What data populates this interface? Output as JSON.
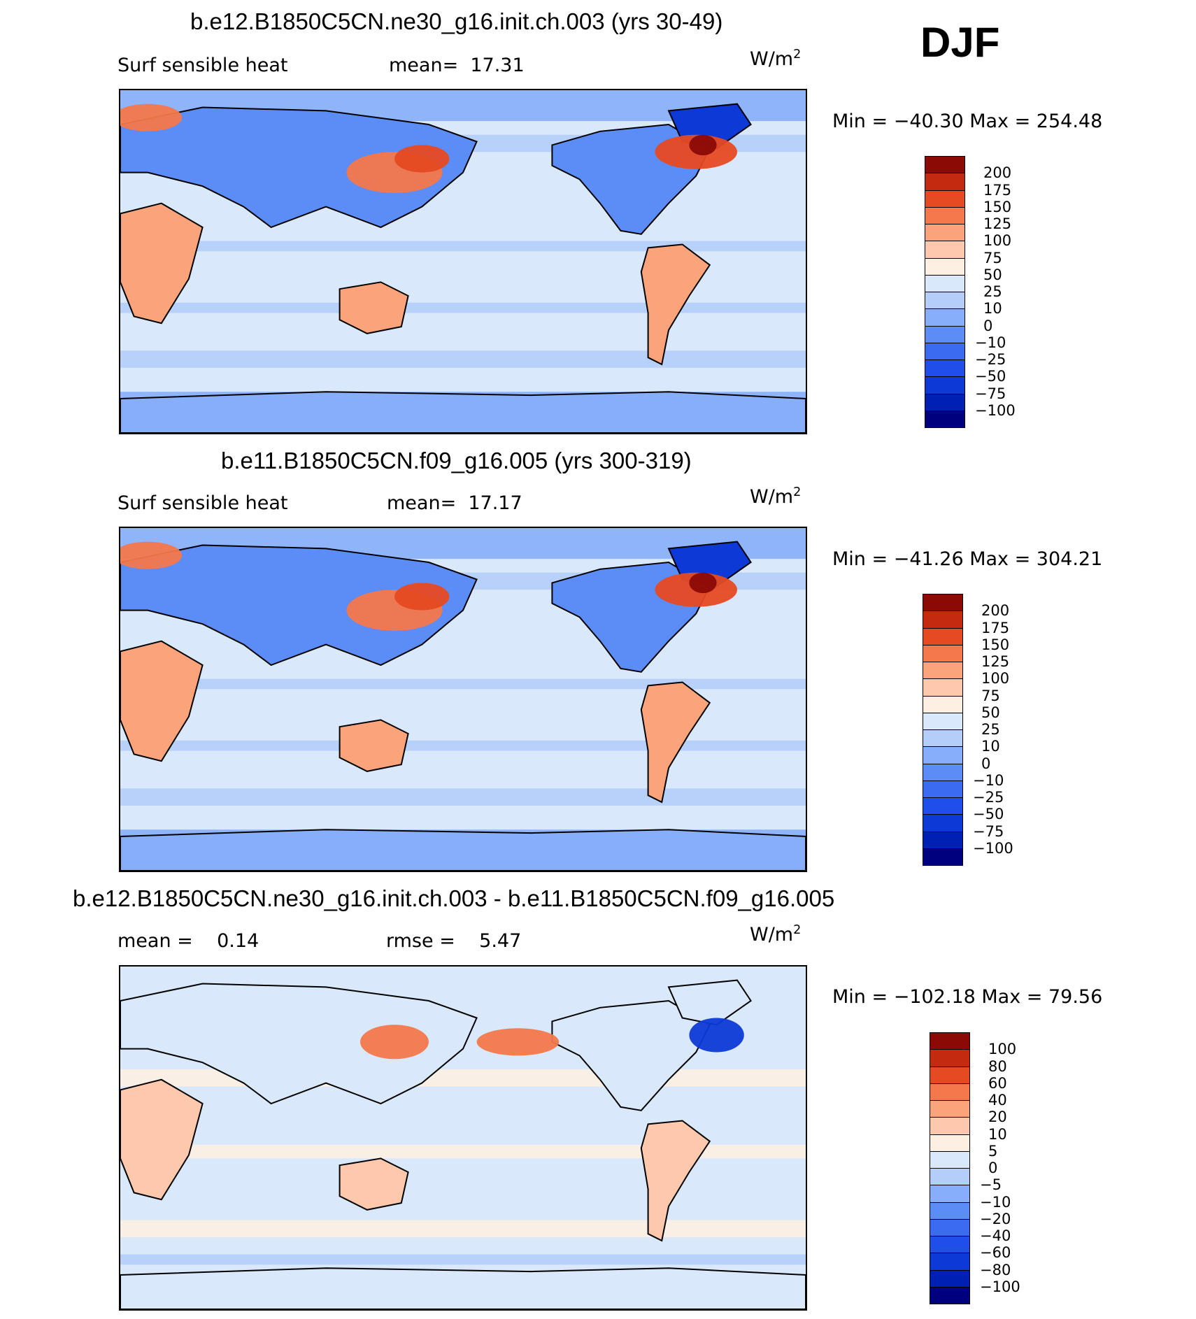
{
  "season": "DJF",
  "palette": {
    "abs": [
      "#00007f",
      "#0020b3",
      "#0d3ad6",
      "#1f4ee8",
      "#3a6bf0",
      "#5c8cf5",
      "#86aefa",
      "#b4cef9",
      "#d9e8fb",
      "#fdf0e2",
      "#fdc8ab",
      "#fba47b",
      "#f4784b",
      "#e64a22",
      "#c42a0f",
      "#8b0a06"
    ],
    "diff": [
      "#00007f",
      "#0020b3",
      "#0d3ad6",
      "#1f4ee8",
      "#3a6bf0",
      "#5c8cf5",
      "#86aefa",
      "#b4cef9",
      "#d9e8fb",
      "#fdf0e2",
      "#fdc8ab",
      "#fba47b",
      "#f4784b",
      "#e64a22",
      "#c42a0f",
      "#8b0a06"
    ],
    "land_outline": "#000000"
  },
  "panels": [
    {
      "case_title": "b.e12.B1850C5CN.ne30_g16.init.ch.003 (yrs 30-49)",
      "left_text": "Surf sensible heat",
      "center_text": "mean=  17.31",
      "units_main": "W/m",
      "units_exp": "2",
      "minmax": "Min = −40.30 Max = 254.48",
      "scale": "abs"
    },
    {
      "case_title": "b.e11.B1850C5CN.f09_g16.005 (yrs 300-319)",
      "left_text": "Surf sensible heat",
      "center_text": "mean=  17.17",
      "units_main": "W/m",
      "units_exp": "2",
      "minmax": "Min = −41.26 Max = 304.21",
      "scale": "abs"
    },
    {
      "case_title": "b.e12.B1850C5CN.ne30_g16.init.ch.003 - b.e11.B1850C5CN.f09_g16.005",
      "left_text": "mean =    0.14",
      "center_text": "rmse =    5.47",
      "units_main": "W/m",
      "units_exp": "2",
      "minmax": "Min = −102.18 Max =   79.56",
      "scale": "diff"
    }
  ],
  "chart_data": [
    {
      "type": "heatmap",
      "title": "b.e12.B1850C5CN.ne30_g16.init.ch.003 (yrs 30-49)",
      "variable": "Surf sensible heat",
      "units": "W/m2",
      "mean": 17.31,
      "min": -40.3,
      "max": 254.48,
      "colorbar_levels": [
        200,
        175,
        150,
        125,
        100,
        75,
        50,
        25,
        10,
        0,
        -10,
        -25,
        -50,
        -75,
        -100
      ],
      "colorbar_labels": [
        "200",
        "175",
        "150",
        "125",
        "100",
        "75",
        "50",
        "25",
        "10",
        "0",
        "−10",
        "−25",
        "−50",
        "−75",
        "−100"
      ]
    },
    {
      "type": "heatmap",
      "title": "b.e11.B1850C5CN.f09_g16.005 (yrs 300-319)",
      "variable": "Surf sensible heat",
      "units": "W/m2",
      "mean": 17.17,
      "min": -41.26,
      "max": 304.21,
      "colorbar_levels": [
        200,
        175,
        150,
        125,
        100,
        75,
        50,
        25,
        10,
        0,
        -10,
        -25,
        -50,
        -75,
        -100
      ],
      "colorbar_labels": [
        "200",
        "175",
        "150",
        "125",
        "100",
        "75",
        "50",
        "25",
        "10",
        "0",
        "−10",
        "−25",
        "−50",
        "−75",
        "−100"
      ]
    },
    {
      "type": "heatmap",
      "title": "b.e12.B1850C5CN.ne30_g16.init.ch.003 - b.e11.B1850C5CN.f09_g16.005",
      "units": "W/m2",
      "mean": 0.14,
      "rmse": 5.47,
      "min": -102.18,
      "max": 79.56,
      "colorbar_levels": [
        100,
        80,
        60,
        40,
        20,
        10,
        5,
        0,
        -5,
        -10,
        -20,
        -40,
        -60,
        -80,
        -100
      ],
      "colorbar_labels": [
        "100",
        "80",
        "60",
        "40",
        "20",
        "10",
        "5",
        "0",
        "−5",
        "−10",
        "−20",
        "−40",
        "−60",
        "−80",
        "−100"
      ]
    }
  ]
}
